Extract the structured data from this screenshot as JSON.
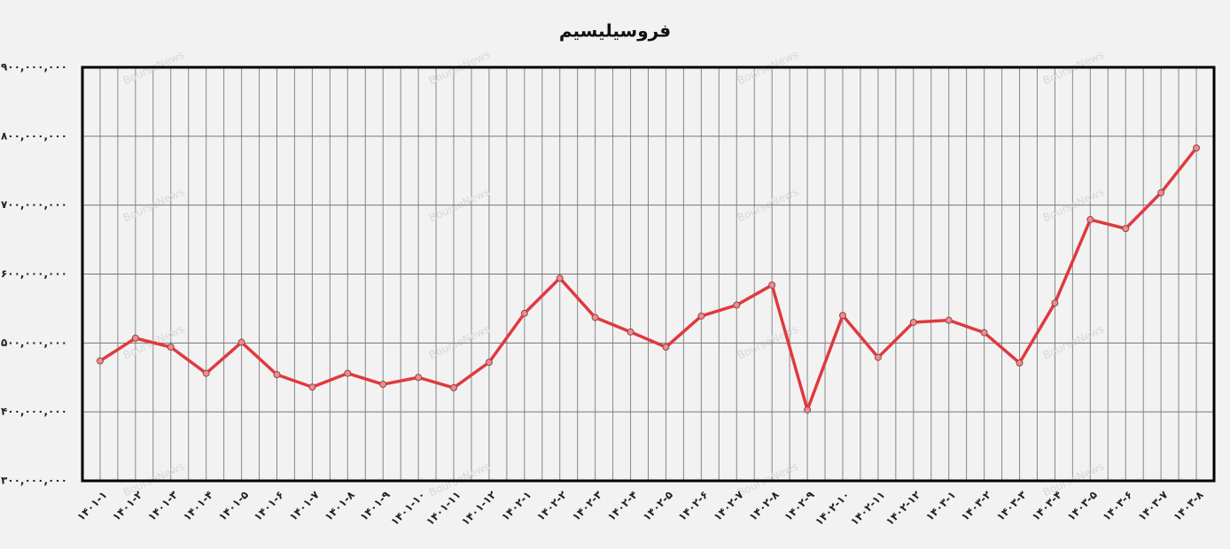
{
  "chart_data": {
    "type": "line",
    "title": "فروسیلیسیم",
    "watermark": "BourseNews",
    "categories": [
      "۱۴۰۱-۱",
      "۱۴۰۱-۲",
      "۱۴۰۱-۳",
      "۱۴۰۱-۴",
      "۱۴۰۱-۵",
      "۱۴۰۱-۶",
      "۱۴۰۱-۷",
      "۱۴۰۱-۸",
      "۱۴۰۱-۹",
      "۱۴۰۱-۱۰",
      "۱۴۰۱-۱۱",
      "۱۴۰۱-۱۲",
      "۱۴۰۲-۱",
      "۱۴۰۲-۲",
      "۱۴۰۲-۳",
      "۱۴۰۲-۴",
      "۱۴۰۲-۵",
      "۱۴۰۲-۶",
      "۱۴۰۲-۷",
      "۱۴۰۲-۸",
      "۱۴۰۲-۹",
      "۱۴۰۲-۱۰",
      "۱۴۰۲-۱۱",
      "۱۴۰۲-۱۲",
      "۱۴۰۳-۱",
      "۱۴۰۳-۲",
      "۱۴۰۳-۳",
      "۱۴۰۳-۴",
      "۱۴۰۳-۵",
      "۱۴۰۳-۶",
      "۱۴۰۳-۷",
      "۱۴۰۳-۸"
    ],
    "values": [
      474000000,
      507000000,
      494000000,
      456000000,
      501000000,
      454000000,
      436000000,
      456000000,
      440000000,
      450000000,
      435000000,
      472000000,
      543000000,
      594000000,
      537000000,
      516000000,
      494000000,
      539000000,
      555000000,
      584000000,
      403000000,
      540000000,
      479000000,
      530000000,
      533000000,
      515000000,
      471000000,
      558000000,
      679000000,
      666000000,
      718000000,
      783000000
    ],
    "color": "#e0393e",
    "ylim": [
      300000000,
      900000000
    ],
    "yticks": [
      {
        "value": 300000000,
        "label": "۳۰۰,۰۰۰,۰۰۰"
      },
      {
        "value": 400000000,
        "label": "۴۰۰,۰۰۰,۰۰۰"
      },
      {
        "value": 500000000,
        "label": "۵۰۰,۰۰۰,۰۰۰"
      },
      {
        "value": 600000000,
        "label": "۶۰۰,۰۰۰,۰۰۰"
      },
      {
        "value": 700000000,
        "label": "۷۰۰,۰۰۰,۰۰۰"
      },
      {
        "value": 800000000,
        "label": "۸۰۰,۰۰۰,۰۰۰"
      },
      {
        "value": 900000000,
        "label": "۹۰۰,۰۰۰,۰۰۰"
      }
    ],
    "grid": true
  }
}
